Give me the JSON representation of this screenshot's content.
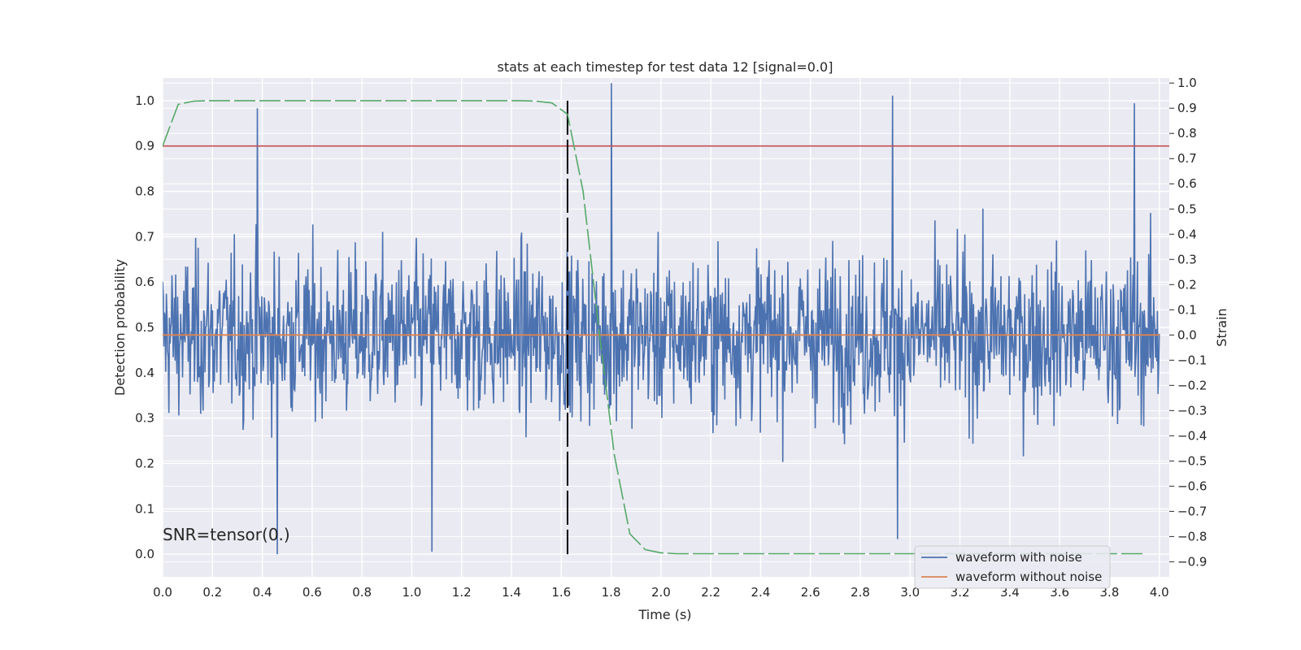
{
  "chart_data": {
    "type": "line",
    "title": "stats at each timestep for test data 12 [signal=0.0]",
    "xlabel": "Time (s)",
    "ylabel_left": "Detection probability",
    "ylabel_right": "Strain",
    "xlim": [
      0.0,
      4.04
    ],
    "ylim_left": [
      -0.05,
      1.05
    ],
    "ylim_right": [
      -0.96,
      1.02
    ],
    "x_ticks": [
      "0.0",
      "0.2",
      "0.4",
      "0.6",
      "0.8",
      "1.0",
      "1.2",
      "1.4",
      "1.6",
      "1.8",
      "2.0",
      "2.2",
      "2.4",
      "2.6",
      "2.8",
      "3.0",
      "3.2",
      "3.4",
      "3.6",
      "3.8",
      "4.0"
    ],
    "y_left_ticks": [
      "0.0",
      "0.1",
      "0.2",
      "0.3",
      "0.4",
      "0.5",
      "0.6",
      "0.7",
      "0.8",
      "0.9",
      "1.0"
    ],
    "y_right_ticks": [
      "−0.9",
      "−0.8",
      "−0.7",
      "−0.6",
      "−0.5",
      "−0.4",
      "−0.3",
      "−0.2",
      "−0.1",
      "0.0",
      "0.1",
      "0.2",
      "0.3",
      "0.4",
      "0.5",
      "0.6",
      "0.7",
      "0.8",
      "0.9",
      "1.0"
    ],
    "grid": true,
    "legend_placement": "lower-right",
    "annotation": "SNR=tensor(0.)",
    "threshold_line": {
      "y": 0.9,
      "color": "#c44e52"
    },
    "vertical_marker": {
      "x": 1.625,
      "y_range": [
        0.0,
        1.0
      ],
      "color": "#000000"
    },
    "series": [
      {
        "name": "waveform with noise",
        "axis": "right",
        "color": "#4c72b0",
        "x_range": [
          0.0,
          4.0
        ],
        "points": 1600,
        "mean": 0.0,
        "approx_range": [
          -0.88,
          1.0
        ],
        "spikes": [
          {
            "x": 0.38,
            "y": 0.9
          },
          {
            "x": 1.8,
            "y": 1.0
          },
          {
            "x": 2.93,
            "y": 0.95
          },
          {
            "x": 3.9,
            "y": 0.92
          },
          {
            "x": 0.46,
            "y": -0.87
          },
          {
            "x": 1.08,
            "y": -0.86
          },
          {
            "x": 2.95,
            "y": -0.81
          }
        ]
      },
      {
        "name": "waveform without noise",
        "axis": "right",
        "color": "#dd8452",
        "x": [
          0.0,
          4.0
        ],
        "y": [
          0.0,
          0.0
        ]
      },
      {
        "axis": "left",
        "color": "#55a868",
        "x": [
          0.0,
          0.0625,
          0.125,
          0.1875,
          0.25,
          0.3125,
          0.375,
          0.4375,
          0.5,
          0.5625,
          0.625,
          0.6875,
          0.75,
          0.8125,
          0.875,
          0.9375,
          1.0,
          1.0625,
          1.125,
          1.1875,
          1.25,
          1.3125,
          1.375,
          1.4375,
          1.5,
          1.5625,
          1.625,
          1.6875,
          1.75,
          1.8125,
          1.875,
          1.9375,
          2.0,
          2.0625,
          2.125,
          2.1875,
          2.25,
          2.3125,
          2.375,
          2.4375,
          2.5,
          2.5625,
          2.625,
          2.6875,
          2.75,
          2.8125,
          2.875,
          2.9375,
          3.0,
          3.0625,
          3.125,
          3.1875,
          3.25,
          3.3125,
          3.375,
          3.4375,
          3.5,
          3.5625,
          3.625,
          3.6875,
          3.75,
          3.8125,
          3.875,
          3.9375
        ],
        "y": [
          0.9,
          0.992,
          0.999,
          1.0,
          1.0,
          1.0,
          1.0,
          1.0,
          1.0,
          1.0,
          1.0,
          1.0,
          1.0,
          1.0,
          1.0,
          1.0,
          1.0,
          1.0,
          1.0,
          1.0,
          1.0,
          1.0,
          1.0,
          1.0,
          0.999,
          0.995,
          0.97,
          0.8,
          0.5,
          0.22,
          0.045,
          0.01,
          0.003,
          0.001,
          0.001,
          0.001,
          0.001,
          0.001,
          0.001,
          0.001,
          0.001,
          0.001,
          0.001,
          0.001,
          0.001,
          0.001,
          0.001,
          0.001,
          0.001,
          0.001,
          0.001,
          0.001,
          0.001,
          0.001,
          0.001,
          0.001,
          0.001,
          0.001,
          0.001,
          0.001,
          0.001,
          0.001,
          0.001,
          0.001
        ]
      }
    ]
  }
}
